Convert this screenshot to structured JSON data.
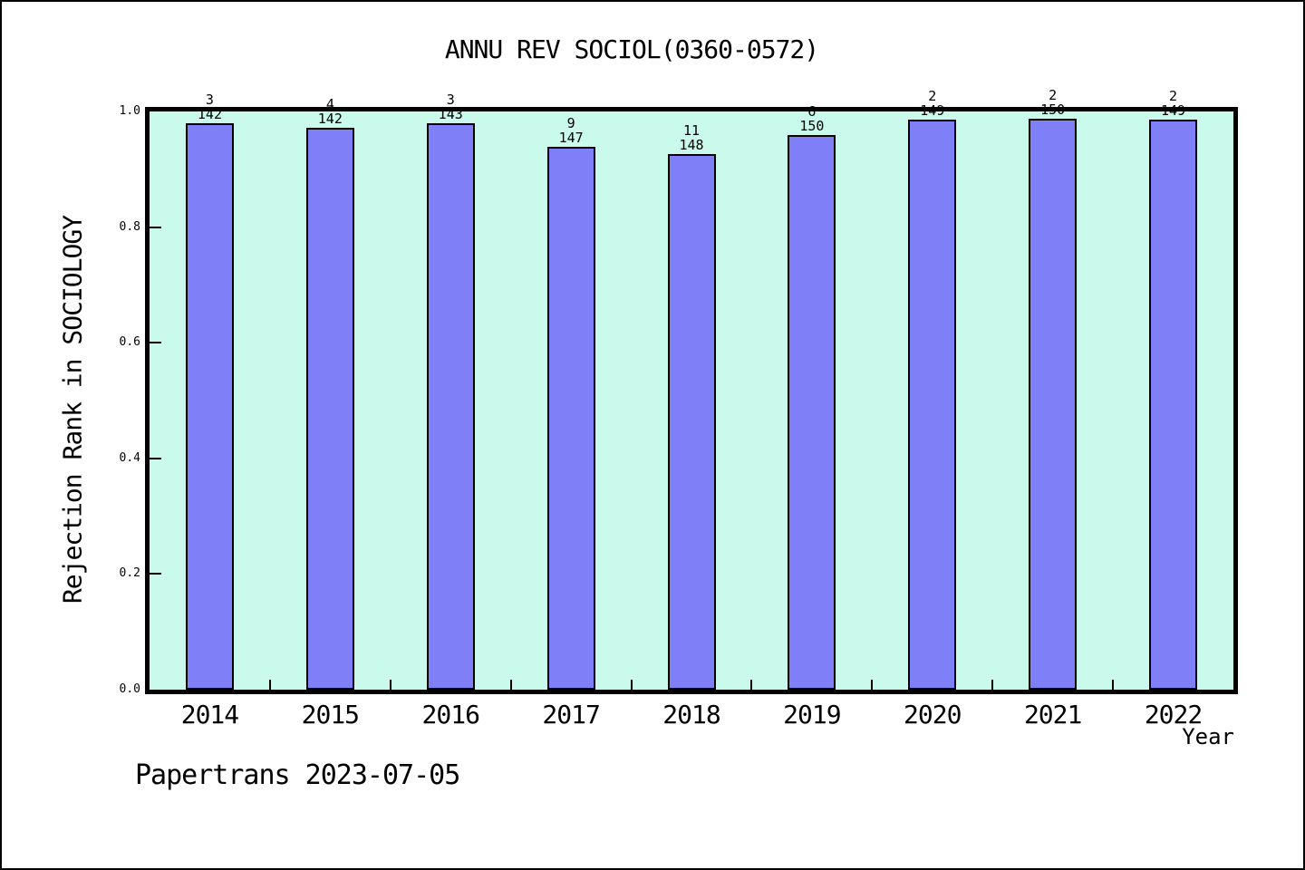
{
  "footer": "Papertrans 2023-07-05",
  "colors": {
    "bar_fill": "#7f7ff7",
    "bar_edge": "#000000",
    "plot_background": "#c9faec",
    "axis": "#000000",
    "text": "#000000",
    "page_background": "#ffffff"
  },
  "chart_data": {
    "type": "bar",
    "title": "ANNU REV SOCIOL(0360-0572)",
    "xlabel": "Year",
    "ylabel": "Rejection Rank in SOCIOLOGY",
    "categories": [
      "2014",
      "2015",
      "2016",
      "2017",
      "2018",
      "2019",
      "2020",
      "2021",
      "2022"
    ],
    "values": [
      0.9789,
      0.9718,
      0.979,
      0.9388,
      0.9257,
      0.96,
      0.9866,
      0.9867,
      0.9866
    ],
    "bar_annotations": [
      {
        "numerator": "3",
        "denominator": "142"
      },
      {
        "numerator": "4",
        "denominator": "142"
      },
      {
        "numerator": "3",
        "denominator": "143"
      },
      {
        "numerator": "9",
        "denominator": "147"
      },
      {
        "numerator": "11",
        "denominator": "148"
      },
      {
        "numerator": "6",
        "denominator": "150"
      },
      {
        "numerator": "2",
        "denominator": "149"
      },
      {
        "numerator": "2",
        "denominator": "150"
      },
      {
        "numerator": "2",
        "denominator": "149"
      }
    ],
    "ylim": [
      0.0,
      1.0
    ],
    "yticks": [
      0.0,
      0.2,
      0.4,
      0.6,
      0.8,
      1.0
    ],
    "ytick_labels": [
      "0.0",
      "0.2",
      "0.4",
      "0.6",
      "0.8",
      "1.0"
    ],
    "grid": false,
    "legend": "none"
  }
}
